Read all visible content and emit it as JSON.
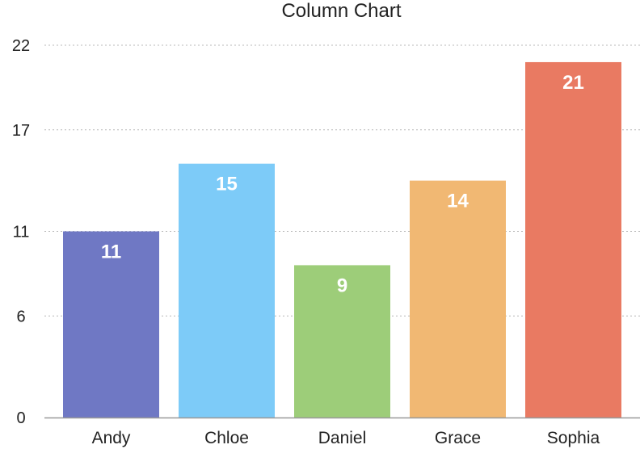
{
  "chart_data": {
    "type": "bar",
    "title": "Column Chart",
    "categories": [
      "Andy",
      "Chloe",
      "Daniel",
      "Grace",
      "Sophia"
    ],
    "values": [
      11,
      15,
      9,
      14,
      21
    ],
    "colors": [
      "#6f78c4",
      "#7dcbf8",
      "#9dcd79",
      "#f1b873",
      "#e97a62"
    ],
    "yticks": [
      0,
      6,
      11,
      17,
      22
    ],
    "ylim": [
      0,
      22
    ],
    "grid": true,
    "gridline_color": "#b8b8b8",
    "axis_color": "#999999",
    "xlabel": "",
    "ylabel": ""
  }
}
